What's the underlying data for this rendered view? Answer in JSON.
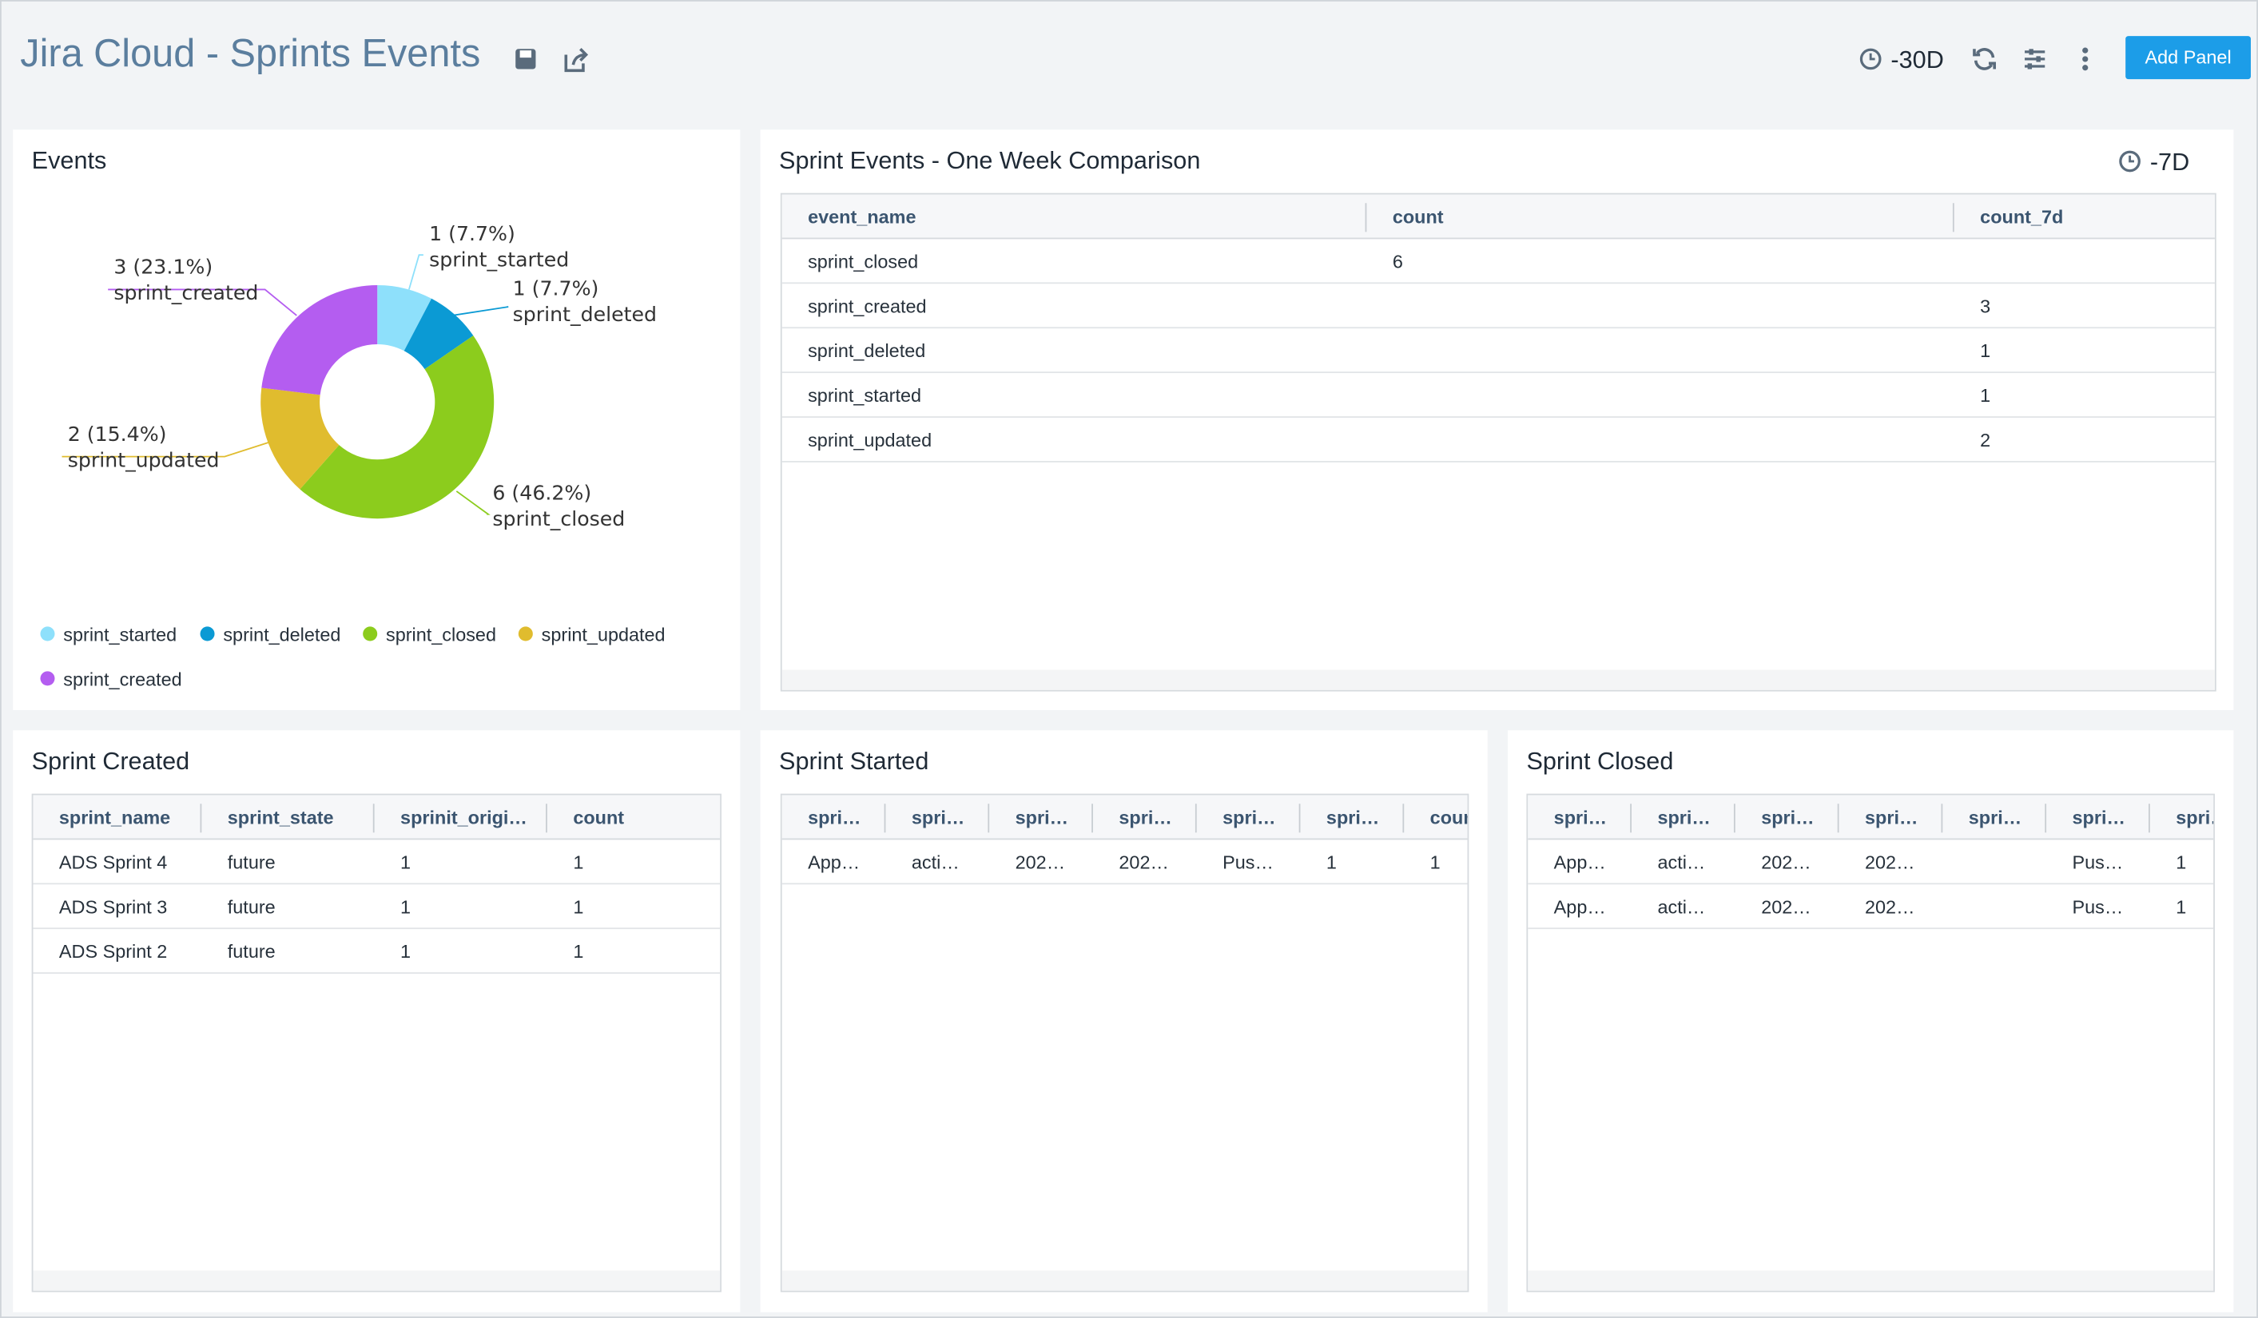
{
  "header": {
    "title": "Jira Cloud - Sprints Events",
    "time_range": "-30D",
    "button": "Add Panel"
  },
  "chart_data": {
    "type": "pie",
    "title": "Events",
    "hole": true,
    "categories": [
      "sprint_started",
      "sprint_deleted",
      "sprint_closed",
      "sprint_updated",
      "sprint_created"
    ],
    "values": [
      1,
      1,
      6,
      2,
      3
    ],
    "value_labels": [
      "1 (7.7%)",
      "1 (7.7%)",
      "6 (46.2%)",
      "2 (15.4%)",
      "3 (23.1%)"
    ],
    "colors": [
      "#8ee0fb",
      "#0b9ad4",
      "#8ccc1d",
      "#e0bc2e",
      "#b45df0"
    ]
  },
  "comparison": {
    "title": "Sprint Events - One Week Comparison",
    "time_range": "-7D",
    "columns": [
      "event_name",
      "count",
      "count_7d"
    ],
    "rows": [
      [
        "sprint_closed",
        6,
        null
      ],
      [
        "sprint_created",
        null,
        3
      ],
      [
        "sprint_deleted",
        null,
        1
      ],
      [
        "sprint_started",
        null,
        1
      ],
      [
        "sprint_updated",
        null,
        2
      ]
    ]
  },
  "sprint_created": {
    "title": "Sprint Created",
    "columns": [
      "sprint_name",
      "sprint_state",
      "sprinit_origi…",
      "count"
    ],
    "rows": [
      [
        "ADS Sprint 4",
        "future",
        1,
        1
      ],
      [
        "ADS Sprint 3",
        "future",
        1,
        1
      ],
      [
        "ADS Sprint 2",
        "future",
        1,
        1
      ]
    ]
  },
  "sprint_started": {
    "title": "Sprint Started",
    "columns": [
      "spri…",
      "spri…",
      "spri…",
      "spri…",
      "spri…",
      "spri…",
      "coun"
    ],
    "rows": [
      [
        "App…",
        "acti…",
        "202…",
        "202…",
        "Pus…",
        1,
        1
      ]
    ]
  },
  "sprint_closed": {
    "title": "Sprint Closed",
    "columns": [
      "spri…",
      "spri…",
      "spri…",
      "spri…",
      "spri…",
      "spri…",
      "spri…"
    ],
    "rows": [
      [
        "App…",
        "acti…",
        "202…",
        "202…",
        null,
        "Pus…",
        1
      ],
      [
        "App…",
        "acti…",
        "202…",
        "202…",
        null,
        "Pus…",
        1
      ]
    ]
  }
}
